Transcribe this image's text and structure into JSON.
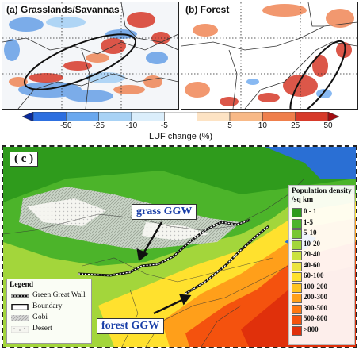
{
  "panel_a": {
    "label": "(a) Grasslands/Savannas"
  },
  "panel_b": {
    "label": "(b) Forest"
  },
  "colorbar": {
    "title": "LUF change (%)",
    "ticks": [
      "-50",
      "-25",
      "-10",
      "-5",
      "5",
      "10",
      "25",
      "50"
    ],
    "colors": [
      "#0a2a9a",
      "#2d6fe0",
      "#6aa8ef",
      "#a8d2f5",
      "#dbeefb",
      "#ffffff",
      "#fde3c4",
      "#f8b987",
      "#ef7f4c",
      "#d73a2a",
      "#a20d12"
    ]
  },
  "panel_c": {
    "label": "( c )",
    "callouts": {
      "grass": "grass GGW",
      "forest": "forest GGW"
    },
    "population_legend": {
      "title_line1": "Population density",
      "title_line2": "/sq km",
      "classes": [
        {
          "label": "0 - 1",
          "color": "#2f9b1c"
        },
        {
          "label": "1-5",
          "color": "#4cb42a"
        },
        {
          "label": "5-10",
          "color": "#78c732"
        },
        {
          "label": "10-20",
          "color": "#a3d63b"
        },
        {
          "label": "20-40",
          "color": "#cbe23f"
        },
        {
          "label": "40-60",
          "color": "#ece43f"
        },
        {
          "label": "60-100",
          "color": "#ffe12e"
        },
        {
          "label": "100-200",
          "color": "#ffc421"
        },
        {
          "label": "200-300",
          "color": "#ff9f1a"
        },
        {
          "label": "300-500",
          "color": "#ff7812"
        },
        {
          "label": "500-800",
          "color": "#f4520e"
        },
        {
          "label": ">800",
          "color": "#e0300b"
        }
      ]
    },
    "legend": {
      "title": "Legend",
      "items": [
        {
          "label": "Green Great Wall",
          "icon": "dashed-wall-line"
        },
        {
          "label": "Boundary",
          "icon": "rectangle-outline"
        },
        {
          "label": "Gobi",
          "icon": "grey-hatched"
        },
        {
          "label": "Desert",
          "icon": "white-speckled"
        }
      ]
    }
  }
}
